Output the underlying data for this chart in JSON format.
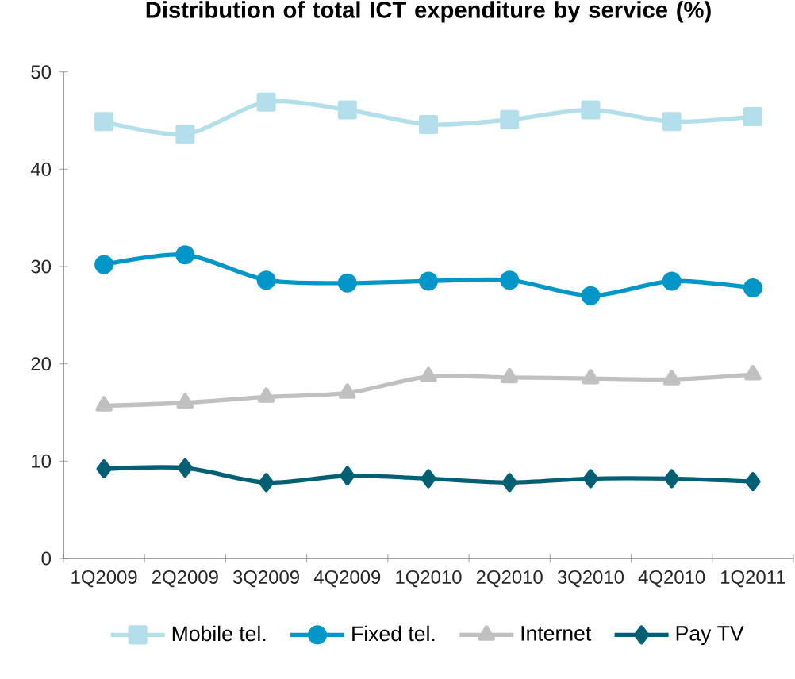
{
  "chart_data": {
    "type": "line",
    "title": "Distribution of total ICT expenditure by service (%)",
    "categories": [
      "1Q2009",
      "2Q2009",
      "3Q2009",
      "4Q2009",
      "1Q2010",
      "2Q2010",
      "3Q2010",
      "4Q2010",
      "1Q2011"
    ],
    "series": [
      {
        "name": "Mobile tel.",
        "color": "#b3dfea",
        "marker": "square",
        "values": [
          44.9,
          43.6,
          46.9,
          46.1,
          44.6,
          45.1,
          46.1,
          44.9,
          45.4
        ]
      },
      {
        "name": "Fixed tel.",
        "color": "#0096c8",
        "marker": "circle",
        "values": [
          30.2,
          31.2,
          28.6,
          28.3,
          28.5,
          28.6,
          27.0,
          28.5,
          27.8
        ]
      },
      {
        "name": "Internet",
        "color": "#c0c0c0",
        "marker": "triangle",
        "values": [
          15.7,
          16.0,
          16.6,
          17.0,
          18.7,
          18.6,
          18.5,
          18.4,
          18.9
        ]
      },
      {
        "name": "Pay TV",
        "color": "#005f73",
        "marker": "diamond",
        "values": [
          9.2,
          9.3,
          7.8,
          8.5,
          8.2,
          7.8,
          8.2,
          8.2,
          7.9
        ]
      }
    ],
    "ylim": [
      0,
      50
    ],
    "yticks": [
      0,
      10,
      20,
      30,
      40,
      50
    ],
    "grid": false,
    "legend": "bottom"
  }
}
